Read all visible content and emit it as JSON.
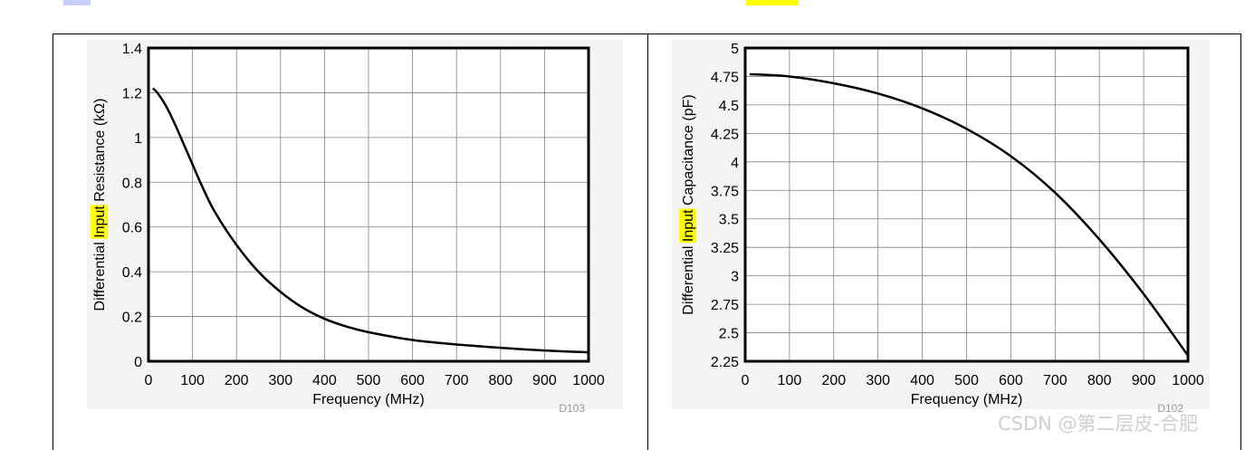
{
  "colors": {
    "highlight": "#ffff00",
    "curve": "#000000",
    "grid": "#808080",
    "plot_bg": "#ffffff",
    "code": "#9a9a9a"
  },
  "watermark": "CSDN @第二层皮-合肥",
  "chart_data": [
    {
      "type": "line",
      "xlabel": "Frequency (MHz)",
      "ylabel_parts": [
        "Differential ",
        "Input",
        " Resistance (kΩ)"
      ],
      "ylabel_highlight": "Input",
      "code": "D103",
      "xlim": [
        0,
        1000
      ],
      "ylim": [
        0,
        1.4
      ],
      "xticks": [
        0,
        100,
        200,
        300,
        400,
        500,
        600,
        700,
        800,
        900,
        1000
      ],
      "xtick_labels": [
        "0",
        "100",
        "200",
        "300",
        "400",
        "500",
        "600",
        "700",
        "800",
        "900",
        "1000"
      ],
      "yticks": [
        0,
        0.2,
        0.4,
        0.6,
        0.8,
        1,
        1.2,
        1.4
      ],
      "ytick_labels": [
        "0",
        "0.2",
        "0.4",
        "0.6",
        "0.8",
        "1",
        "1.2",
        "1.4"
      ],
      "grid": true,
      "series": [
        {
          "x": [
            10,
            20,
            40,
            60,
            80,
            100,
            120,
            150,
            200,
            250,
            300,
            350,
            400,
            450,
            500,
            600,
            700,
            800,
            900,
            1000
          ],
          "y": [
            1.22,
            1.2,
            1.14,
            1.06,
            0.97,
            0.88,
            0.79,
            0.67,
            0.52,
            0.4,
            0.31,
            0.24,
            0.19,
            0.155,
            0.13,
            0.095,
            0.075,
            0.06,
            0.048,
            0.04
          ]
        }
      ]
    },
    {
      "type": "line",
      "xlabel": "Frequency (MHz)",
      "ylabel_parts": [
        "Differential ",
        "Input",
        " Capacitance (pF)"
      ],
      "ylabel_highlight": "Input",
      "code": "D102",
      "xlim": [
        0,
        1000
      ],
      "ylim": [
        2.25,
        5
      ],
      "xticks": [
        0,
        100,
        200,
        300,
        400,
        500,
        600,
        700,
        800,
        900,
        1000
      ],
      "xtick_labels": [
        "0",
        "100",
        "200",
        "300",
        "400",
        "500",
        "600",
        "700",
        "800",
        "900",
        "1000"
      ],
      "yticks": [
        2.25,
        2.5,
        2.75,
        3,
        3.25,
        3.5,
        3.75,
        4,
        4.25,
        4.5,
        4.75,
        5
      ],
      "ytick_labels": [
        "2.25",
        "2.5",
        "2.75",
        "3",
        "3.25",
        "3.5",
        "3.75",
        "4",
        "4.25",
        "4.5",
        "4.75",
        "5"
      ],
      "grid": true,
      "series": [
        {
          "x": [
            10,
            100,
            200,
            300,
            400,
            500,
            600,
            700,
            800,
            900,
            1000
          ],
          "y": [
            4.77,
            4.75,
            4.69,
            4.6,
            4.47,
            4.29,
            4.05,
            3.73,
            3.32,
            2.84,
            2.3
          ]
        }
      ]
    }
  ]
}
